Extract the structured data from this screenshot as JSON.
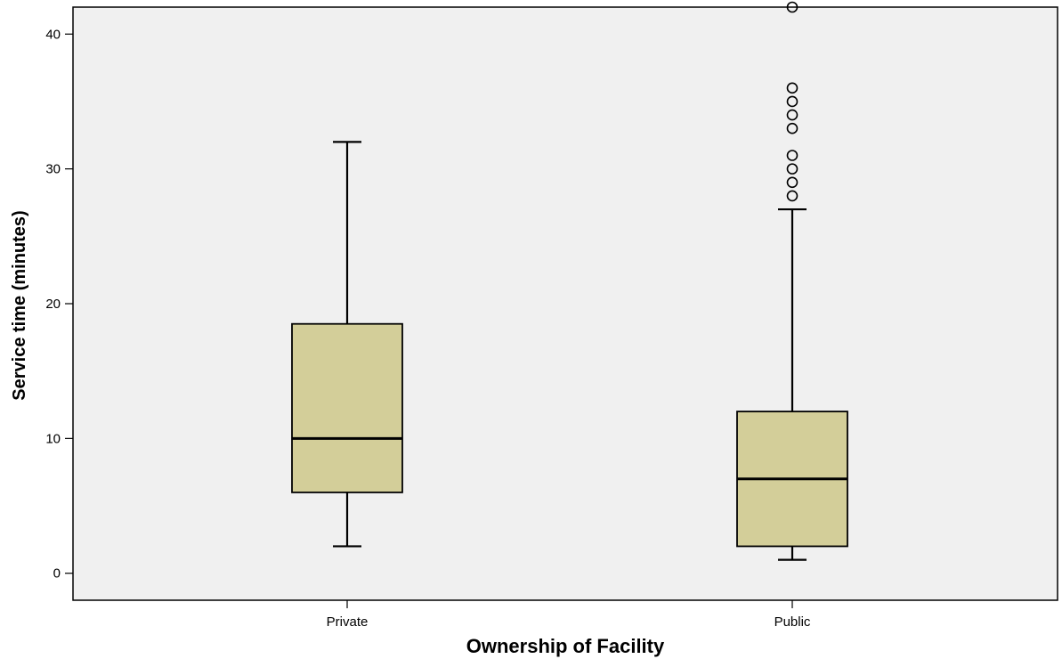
{
  "chart_data": {
    "type": "boxplot",
    "xlabel": "Ownership of Facility",
    "ylabel": "Service time (minutes)",
    "ylim": [
      -2,
      42
    ],
    "yticks": [
      0,
      10,
      20,
      30,
      40
    ],
    "grid": false,
    "legend": "none",
    "categories": [
      "Private",
      "Public"
    ],
    "boxes": [
      {
        "category": "Private",
        "whisker_low": 2,
        "q1": 6,
        "median": 10,
        "q3": 18.5,
        "whisker_high": 32,
        "outliers": []
      },
      {
        "category": "Public",
        "whisker_low": 1,
        "q1": 2,
        "median": 7,
        "q3": 12,
        "whisker_high": 27,
        "outliers": [
          28,
          29,
          30,
          31,
          33,
          34,
          35,
          36,
          42
        ]
      }
    ]
  },
  "colors": {
    "plot_background": "#f0f0f0",
    "box_fill": "#d3ce99",
    "stroke": "#000000"
  }
}
